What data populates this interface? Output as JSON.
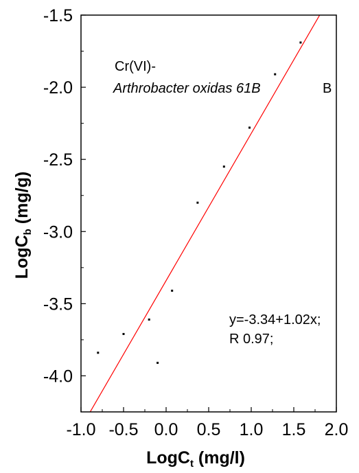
{
  "chart_data": {
    "type": "scatter",
    "xlim": [
      -1.0,
      2.0
    ],
    "ylim": [
      -4.25,
      -1.5
    ],
    "xticks": [
      "-1.0",
      "-0.5",
      "0.0",
      "0.5",
      "1.0",
      "1.5",
      "2.0"
    ],
    "yticks": [
      "-1.5",
      "-2.0",
      "-2.5",
      "-3.0",
      "-3.5",
      "-4.0"
    ],
    "xlabel": {
      "main": "LogC",
      "sub": "t",
      "unit": " (mg/l)"
    },
    "ylabel": {
      "main": "LogC",
      "sub": "b",
      "unit": " (mg/g)"
    },
    "grid": false,
    "points": [
      {
        "x": -0.8,
        "y": -3.84
      },
      {
        "x": -0.5,
        "y": -3.71
      },
      {
        "x": -0.2,
        "y": -3.61
      },
      {
        "x": -0.1,
        "y": -3.91
      },
      {
        "x": 0.07,
        "y": -3.41
      },
      {
        "x": 0.37,
        "y": -2.8
      },
      {
        "x": 0.68,
        "y": -2.55
      },
      {
        "x": 0.98,
        "y": -2.28
      },
      {
        "x": 1.28,
        "y": -1.91
      },
      {
        "x": 1.58,
        "y": -1.69
      }
    ],
    "fit_line": {
      "intercept": -3.34,
      "slope": 1.02,
      "color": "#ff0000"
    },
    "annotations": {
      "species_line1": "Cr(VI)-",
      "species_line2": "Arthrobacter oxidas 61B",
      "panel": "B",
      "equation": "y=-3.34+1.02x;",
      "r_value": "R 0.97;"
    }
  }
}
